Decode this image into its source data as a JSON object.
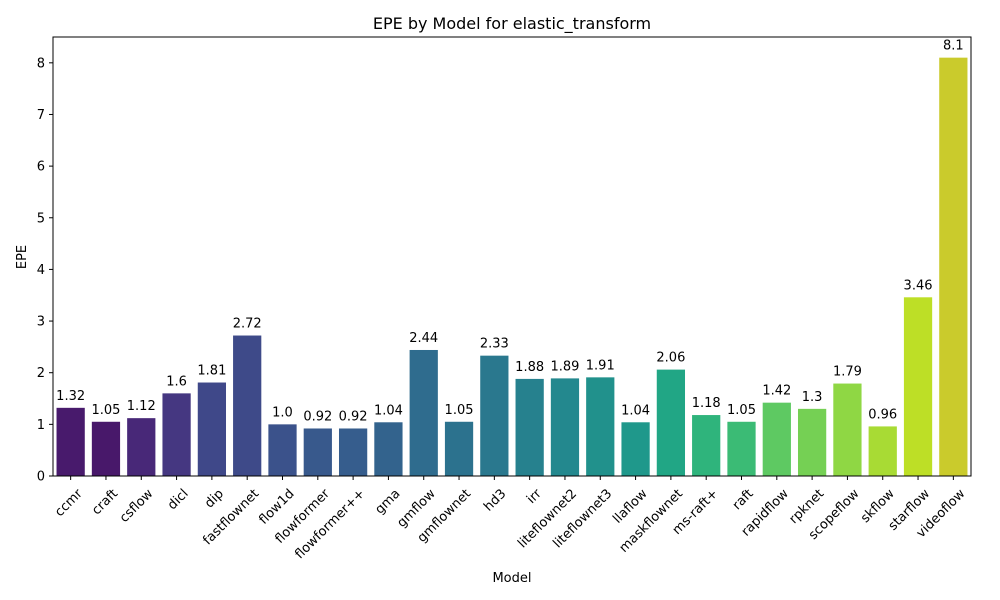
{
  "chart_data": {
    "type": "bar",
    "title": "EPE by Model for elastic_transform",
    "xlabel": "Model",
    "ylabel": "EPE",
    "ylim": [
      0,
      8.5
    ],
    "yticks": [
      0,
      1,
      2,
      3,
      4,
      5,
      6,
      7,
      8
    ],
    "grid": false,
    "categories": [
      "ccmr",
      "craft",
      "csflow",
      "dicl",
      "dip",
      "fastflownet",
      "flow1d",
      "flowformer",
      "flowformer++",
      "gma",
      "gmflow",
      "gmflownet",
      "hd3",
      "irr",
      "liteflownet2",
      "liteflownet3",
      "llaflow",
      "maskflownet",
      "ms-raft+",
      "raft",
      "rapidflow",
      "rpknet",
      "scopeflow",
      "skflow",
      "starflow",
      "videoflow"
    ],
    "values": [
      1.32,
      1.05,
      1.12,
      1.6,
      1.81,
      2.72,
      1.0,
      0.92,
      0.92,
      1.04,
      2.44,
      1.05,
      2.33,
      1.88,
      1.89,
      1.91,
      1.04,
      2.06,
      1.18,
      1.05,
      1.42,
      1.3,
      1.79,
      0.96,
      3.46,
      8.1
    ],
    "value_labels": [
      "1.32",
      "1.05",
      "1.12",
      "1.6",
      "1.81",
      "2.72",
      "1.0",
      "0.92",
      "0.92",
      "1.04",
      "2.44",
      "1.05",
      "2.33",
      "1.88",
      "1.89",
      "1.91",
      "1.04",
      "2.06",
      "1.18",
      "1.05",
      "1.42",
      "1.3",
      "1.79",
      "0.96",
      "3.46",
      "8.1"
    ],
    "colors": [
      "#481a6c",
      "#48186a",
      "#482878",
      "#453781",
      "#3f4889",
      "#3e4a89",
      "#3b528b",
      "#38598c",
      "#365d8d",
      "#33638d",
      "#2f6c8e",
      "#2c728e",
      "#2a788e",
      "#26818e",
      "#23888e",
      "#21918c",
      "#1f988b",
      "#21a685",
      "#2fb47c",
      "#3bbb75",
      "#5ec962",
      "#75d054",
      "#8fd744",
      "#a8db34",
      "#bddf26",
      "#cacb2c"
    ],
    "colormap": "viridis"
  }
}
